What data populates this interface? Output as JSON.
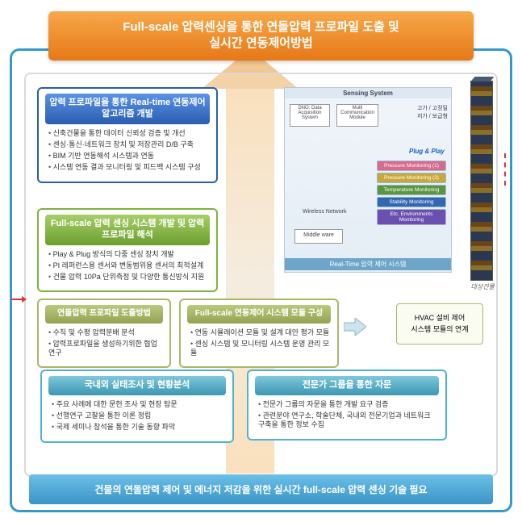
{
  "colors": {
    "orange_grad_top": "#f7a94a",
    "orange_grad_bot": "#e67817",
    "frame_blue": "#3399cc",
    "bottom_grad_top": "#6cc0e8",
    "bottom_grad_bot": "#3b94c7"
  },
  "topBanner": "Full-scale 압력센싱을 통한 연돌압력 프로파일 도출 및\n실시간 연동제어방법",
  "bottomBanner": "건물의 연돌압력 제어 및 에너지 저감을 위한 실시간 full-scale 압력 센싱 기술 필요",
  "rtBox": {
    "title": "압력 프로파일을 통한 Real-time 연동제어 알고리즘 개발",
    "items": [
      "신축건물을 통한 데이터 신뢰성 검증 및 개선",
      "센싱·통신·네트워크 장치 및 저장관리 D/B 구축",
      "BIM 기반 연동해석 시스템과 연동",
      "시스템 연동 결과 모니터링 및 피드백 시스템 구성"
    ]
  },
  "fsBox": {
    "title": "Full-scale 압력 센싱 시스템 개발 및 압력 프로파일 해석",
    "items": [
      "Play & Plug 방식의 다중 센싱 장치 개발",
      "PI 레퍼런스용 센서와 변동범위용 센서의 최적설계",
      "건물 압력 10Pa 단위측정 및 다양한 통신방식 지원"
    ]
  },
  "olive1": {
    "title": "연돌압력 프로파일 도출방법",
    "items": [
      "수직 및 수평 압력분배 분석",
      "압력프로파일을 생성하기위한 협업연구"
    ]
  },
  "olive2": {
    "title": "Full-scale 연동제어 시스템 모듈 구성",
    "items": [
      "연동 시뮬레이션 모듈 및 설계 대안 평가 모듈",
      "센싱 시스템 및 모니터링 시스템 운영 관리 모듈"
    ]
  },
  "hvac": {
    "line1": "HVAC 설비 제어",
    "line2": "시스템 모듈의 연계"
  },
  "teal1": {
    "title": "국내외 실태조사 및 현황분석",
    "items": [
      "주요 사례에 대한 문헌 조사 및 현장 탐문",
      "선행연구 고찰을 통한 이론 정립",
      "국제 세미나 참석을 통한 기술 동향 파악"
    ]
  },
  "teal2": {
    "title": "전문가 그룹을 통한 자문",
    "items": [
      "전문가 그룹의 자문을 통한 개발 요구 검증",
      "관련분야 연구소, 학술단체, 국내외 전문기업과 네트워크 구축을 통한 정보 수집"
    ]
  },
  "diagram": {
    "title": "Sensing System",
    "dno": "DNO: Data Acquisition System",
    "mcm": "Multi Communication Module",
    "rlabel1": "고가 / 고정밀",
    "rlabel2": "저가 / 보급형",
    "plugplay": "Plug & Play",
    "wireless": "Wireless Network",
    "middleware": "Middle ware",
    "stack": [
      {
        "label": "Pressure Monitoring (1)",
        "color": "#d66a8f"
      },
      {
        "label": "Pressure Monitoring (2)",
        "color": "#c7a83d"
      },
      {
        "label": "Temperature Monitoring",
        "color": "#5a9640"
      },
      {
        "label": "Stability Monitoring",
        "color": "#3268b0"
      },
      {
        "label": "Etc. Environments Monitoring",
        "color": "#6a50b0"
      }
    ],
    "rt": "Real-Time 압력 제어 시스템",
    "target": "대상건물"
  }
}
